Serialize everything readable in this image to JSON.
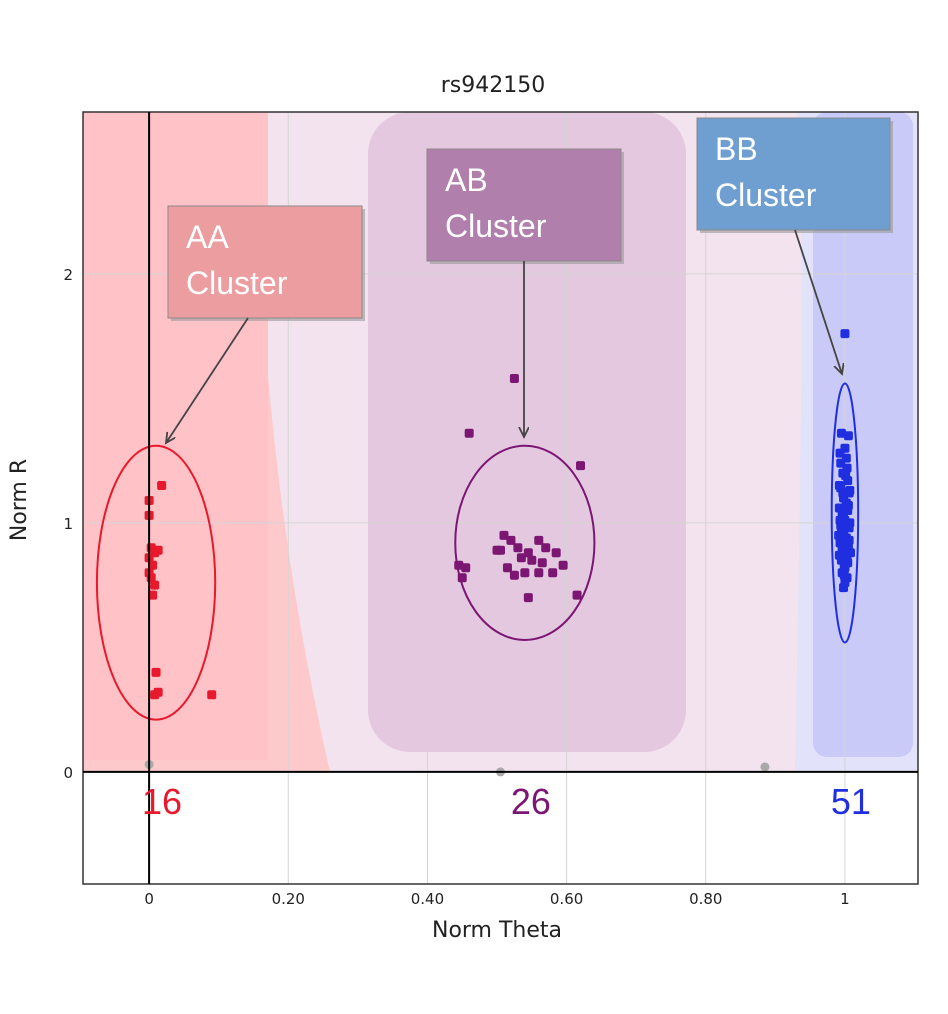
{
  "chart_data": {
    "type": "scatter",
    "title": "rs942150",
    "xlabel": "Norm  Theta",
    "ylabel": "Norm R",
    "xlim": [
      -0.095,
      1.105
    ],
    "ylim": [
      -0.45,
      2.65
    ],
    "x_ticks": [
      {
        "value": 0,
        "label": "0"
      },
      {
        "value": 0.2,
        "label": "0.20"
      },
      {
        "value": 0.4,
        "label": "0.40"
      },
      {
        "value": 0.6,
        "label": "0.60"
      },
      {
        "value": 0.8,
        "label": "0.80"
      },
      {
        "value": 1,
        "label": "1"
      }
    ],
    "y_ticks": [
      {
        "value": 0,
        "label": "0"
      },
      {
        "value": 1,
        "label": "1"
      },
      {
        "value": 2,
        "label": "2"
      }
    ],
    "grid": true,
    "colors": {
      "AA": "#e8192c",
      "AB": "#7b1673",
      "BB": "#1f2fe0",
      "AA_region": "#fdc9cb",
      "AB_region": "#e3c8df",
      "BB_region": "#c9caf7",
      "gap_region": "#f3e3ee",
      "AA_callout": "#ec9da0",
      "AB_callout": "#b07fac",
      "BB_callout": "#6f9fd0"
    },
    "clusters": [
      {
        "name": "AA",
        "count": "16",
        "callout": [
          "AA",
          "Cluster"
        ],
        "ellipse": {
          "cx": 0.01,
          "cy": 0.76,
          "rx": 0.085,
          "ry": 0.55
        },
        "points": [
          [
            0.0,
            1.09
          ],
          [
            0.0,
            1.03
          ],
          [
            0.018,
            1.15
          ],
          [
            0.003,
            0.9
          ],
          [
            0.008,
            0.88
          ],
          [
            0.013,
            0.89
          ],
          [
            0.0,
            0.86
          ],
          [
            0.005,
            0.83
          ],
          [
            0.0,
            0.8
          ],
          [
            0.003,
            0.78
          ],
          [
            0.008,
            0.75
          ],
          [
            0.005,
            0.71
          ],
          [
            0.01,
            0.4
          ],
          [
            0.008,
            0.31
          ],
          [
            0.013,
            0.32
          ],
          [
            0.09,
            0.31
          ]
        ]
      },
      {
        "name": "AB",
        "count": "26",
        "callout": [
          "AB",
          "Cluster"
        ],
        "ellipse": {
          "cx": 0.54,
          "cy": 0.92,
          "rx": 0.1,
          "ry": 0.39
        },
        "points": [
          [
            0.525,
            1.58
          ],
          [
            0.46,
            1.36
          ],
          [
            0.62,
            1.23
          ],
          [
            0.51,
            0.95
          ],
          [
            0.52,
            0.93
          ],
          [
            0.53,
            0.9
          ],
          [
            0.505,
            0.89
          ],
          [
            0.545,
            0.88
          ],
          [
            0.56,
            0.93
          ],
          [
            0.57,
            0.9
          ],
          [
            0.585,
            0.88
          ],
          [
            0.55,
            0.85
          ],
          [
            0.565,
            0.84
          ],
          [
            0.58,
            0.8
          ],
          [
            0.535,
            0.86
          ],
          [
            0.515,
            0.82
          ],
          [
            0.54,
            0.8
          ],
          [
            0.56,
            0.8
          ],
          [
            0.525,
            0.79
          ],
          [
            0.445,
            0.83
          ],
          [
            0.455,
            0.82
          ],
          [
            0.45,
            0.78
          ],
          [
            0.545,
            0.7
          ],
          [
            0.615,
            0.71
          ],
          [
            0.595,
            0.83
          ],
          [
            0.5,
            0.89
          ]
        ]
      },
      {
        "name": "BB",
        "count": "51",
        "callout": [
          "BB",
          "Cluster"
        ],
        "ellipse": {
          "cx": 1.0,
          "cy": 1.04,
          "rx": 0.019,
          "ry": 0.52
        },
        "points": [
          [
            1.0,
            1.76
          ],
          [
            0.995,
            1.36
          ],
          [
            1.005,
            1.35
          ],
          [
            1.0,
            1.3
          ],
          [
            0.993,
            1.28
          ],
          [
            1.003,
            1.22
          ],
          [
            0.997,
            1.2
          ],
          [
            1.004,
            1.17
          ],
          [
            0.994,
            1.14
          ],
          [
            1.006,
            1.12
          ],
          [
            0.998,
            1.1
          ],
          [
            1.002,
            1.08
          ],
          [
            0.992,
            1.06
          ],
          [
            1.004,
            1.05
          ],
          [
            0.996,
            1.03
          ],
          [
            1.0,
            1.01
          ],
          [
            0.994,
            0.99
          ],
          [
            1.006,
            0.98
          ],
          [
            0.998,
            0.96
          ],
          [
            1.002,
            0.94
          ],
          [
            0.993,
            0.92
          ],
          [
            1.005,
            0.91
          ],
          [
            0.997,
            0.89
          ],
          [
            1.001,
            0.87
          ],
          [
            0.995,
            0.85
          ],
          [
            1.004,
            0.84
          ],
          [
            0.999,
            0.82
          ],
          [
            0.996,
            0.8
          ],
          [
            1.003,
            0.78
          ],
          [
            1.0,
            0.76
          ],
          [
            0.998,
            0.74
          ],
          [
            0.992,
            1.15
          ],
          [
            1.007,
            1.0
          ],
          [
            0.991,
            0.95
          ],
          [
            1.008,
            0.88
          ],
          [
            0.994,
            1.24
          ],
          [
            1.002,
            1.26
          ],
          [
            0.997,
            1.12
          ],
          [
            1.005,
            1.07
          ],
          [
            0.993,
            1.01
          ],
          [
            1.006,
            0.93
          ],
          [
            0.996,
            0.9
          ],
          [
            1.003,
            0.86
          ],
          [
            0.999,
            0.79
          ],
          [
            0.995,
            0.97
          ],
          [
            1.001,
            1.19
          ],
          [
            0.998,
            1.04
          ],
          [
            1.004,
            0.99
          ],
          [
            0.992,
            0.87
          ],
          [
            1.007,
            1.13
          ],
          [
            1.0,
            0.82
          ]
        ]
      }
    ],
    "failed_points": [
      [
        0.0,
        0.03
      ],
      [
        0.505,
        0.0
      ],
      [
        0.885,
        0.02
      ]
    ]
  }
}
